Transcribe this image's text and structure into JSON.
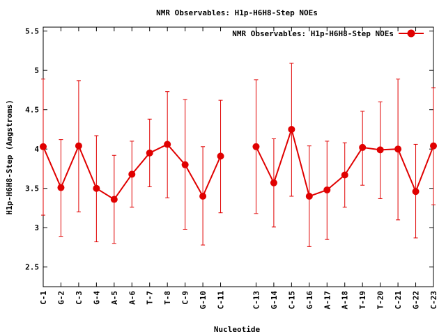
{
  "chart_data": {
    "type": "line",
    "title": "NMR Observables: H1p-H6H8-Step NOEs",
    "xlabel": "Nucleotide",
    "ylabel": "H1p-H6H8-Step (Angstroms)",
    "ylim": [
      2.25,
      5.55
    ],
    "yticks": [
      "2.5",
      "3",
      "3.5",
      "4",
      "4.5",
      "5",
      "5.5"
    ],
    "ytick_values": [
      2.5,
      3,
      3.5,
      4,
      4.5,
      5,
      5.5
    ],
    "xlim": [
      1,
      23
    ],
    "categories": [
      "C-1",
      "G-2",
      "C-3",
      "G-4",
      "A-5",
      "A-6",
      "T-7",
      "T-8",
      "C-9",
      "G-10",
      "C-11",
      "C-13",
      "G-14",
      "C-15",
      "G-16",
      "A-17",
      "A-18",
      "T-19",
      "T-20",
      "C-21",
      "G-22",
      "C-23"
    ],
    "x": [
      1,
      2,
      3,
      4,
      5,
      6,
      7,
      8,
      9,
      10,
      11,
      13,
      14,
      15,
      16,
      17,
      18,
      19,
      20,
      21,
      22,
      23
    ],
    "grid": false,
    "legend_position": "top-right",
    "color": "#e00000",
    "series": [
      {
        "name": "NMR Observables: H1p-H6H8-Step NOEs",
        "segments": [
          [
            0,
            10
          ],
          [
            11,
            21
          ]
        ],
        "values": [
          4.03,
          3.51,
          4.04,
          3.5,
          3.36,
          3.68,
          3.95,
          4.06,
          3.8,
          3.4,
          3.91,
          4.03,
          3.57,
          4.25,
          3.4,
          3.48,
          3.67,
          4.02,
          3.99,
          4.0,
          3.46,
          4.04
        ],
        "err_low": [
          3.16,
          2.89,
          3.2,
          2.82,
          2.8,
          3.26,
          3.52,
          3.38,
          2.98,
          2.78,
          3.19,
          3.18,
          3.01,
          3.4,
          2.76,
          2.85,
          3.26,
          3.54,
          3.37,
          3.1,
          2.87,
          3.29
        ],
        "err_high": [
          4.89,
          4.12,
          4.87,
          4.17,
          3.92,
          4.1,
          4.38,
          4.73,
          4.63,
          4.03,
          4.62,
          4.88,
          4.13,
          5.09,
          4.04,
          4.1,
          4.08,
          4.48,
          4.6,
          4.89,
          4.06,
          4.78
        ]
      }
    ]
  }
}
